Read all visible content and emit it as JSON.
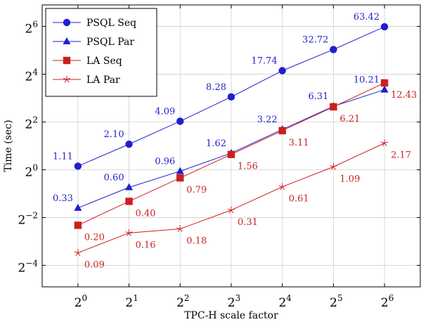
{
  "chart_data": {
    "type": "line",
    "xlabel": "TPC-H scale factor",
    "ylabel": "Time (sec)",
    "x_scale": "log2",
    "y_scale": "log2",
    "x": [
      1,
      2,
      4,
      8,
      16,
      32,
      64
    ],
    "x_tick_labels": [
      {
        "base": "2",
        "exp": "0"
      },
      {
        "base": "2",
        "exp": "1"
      },
      {
        "base": "2",
        "exp": "2"
      },
      {
        "base": "2",
        "exp": "3"
      },
      {
        "base": "2",
        "exp": "4"
      },
      {
        "base": "2",
        "exp": "5"
      },
      {
        "base": "2",
        "exp": "6"
      }
    ],
    "y_ticks": [
      0.0625,
      0.25,
      1,
      4,
      16,
      64
    ],
    "y_tick_labels": [
      {
        "base": "2",
        "exp": "−4"
      },
      {
        "base": "2",
        "exp": "−2"
      },
      {
        "base": "2",
        "exp": "0"
      },
      {
        "base": "2",
        "exp": "2"
      },
      {
        "base": "2",
        "exp": "4"
      },
      {
        "base": "2",
        "exp": "6"
      }
    ],
    "grid": true,
    "legend_position": "top-left",
    "series": [
      {
        "name": "PSQL Seq",
        "color": "#1f1fcc",
        "marker": "circle",
        "label_pos": "above-left",
        "values": [
          1.11,
          2.1,
          4.09,
          8.28,
          17.74,
          32.72,
          63.42
        ],
        "labels": [
          "1.11",
          "2.10",
          "4.09",
          "8.28",
          "17.74",
          "32.72",
          "63.42"
        ]
      },
      {
        "name": "PSQL Par",
        "color": "#1f1fcc",
        "marker": "triangle",
        "label_pos": "above-left",
        "values": [
          0.33,
          0.6,
          0.96,
          1.62,
          3.22,
          6.31,
          10.21
        ],
        "labels": [
          "0.33",
          "0.60",
          "0.96",
          "1.62",
          "3.22",
          "6.31",
          "10.21"
        ]
      },
      {
        "name": "LA Seq",
        "color": "#cc1f1f",
        "marker": "square",
        "label_pos": "below-right",
        "values": [
          0.2,
          0.4,
          0.79,
          1.56,
          3.11,
          6.21,
          12.43
        ],
        "labels": [
          "0.20",
          "0.40",
          "0.79",
          "1.56",
          "3.11",
          "6.21",
          "12.43"
        ]
      },
      {
        "name": "LA Par",
        "color": "#cc1f1f",
        "marker": "star",
        "label_pos": "below-right",
        "values": [
          0.09,
          0.16,
          0.18,
          0.31,
          0.61,
          1.09,
          2.17
        ],
        "labels": [
          "0.09",
          "0.16",
          "0.18",
          "0.31",
          "0.61",
          "1.09",
          "2.17"
        ]
      }
    ]
  }
}
